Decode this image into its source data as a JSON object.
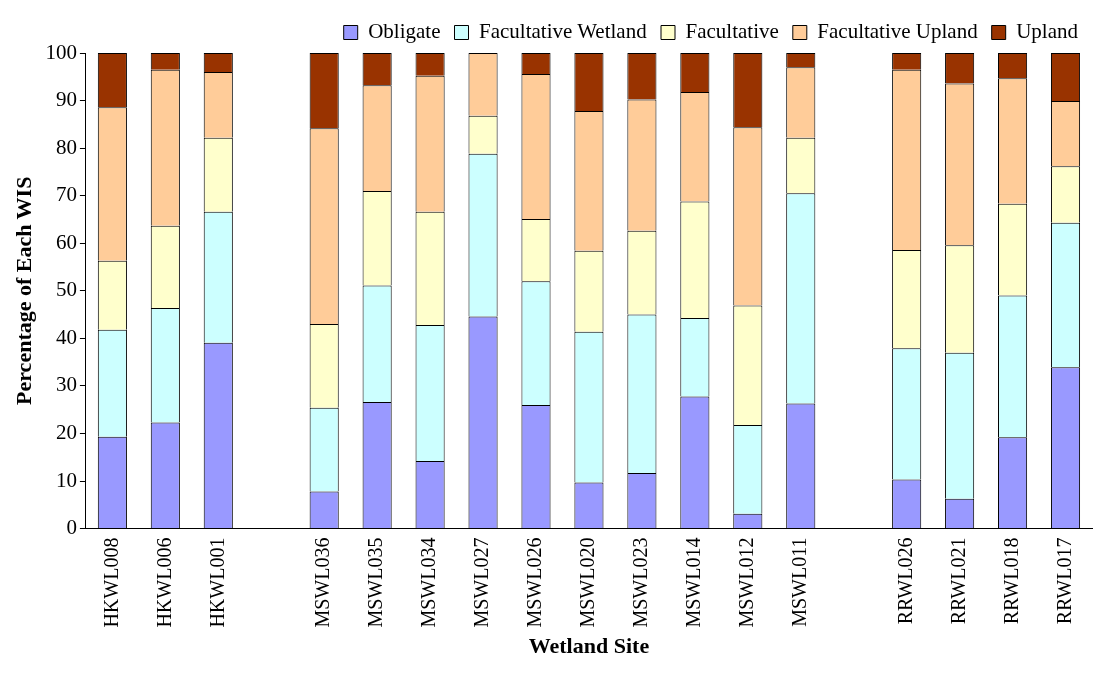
{
  "chart_data": {
    "type": "bar",
    "stacked": true,
    "xlabel": "Wetland Site",
    "ylabel": "Percentage of Each WIS",
    "categories": [
      "HKWL008",
      "HKWL006",
      "HKWL001",
      null,
      "MSWL036",
      "MSWL035",
      "MSWL034",
      "MSWL027",
      "MSWL026",
      "MSWL020",
      "MSWL023",
      "MSWL014",
      "MSWL012",
      "MSWL011",
      null,
      "RRWL026",
      "RRWL021",
      "RRWL018",
      "RRWL017"
    ],
    "series": [
      {
        "name": "Obligate",
        "color": "#9999ff",
        "values": [
          19.3,
          22.3,
          39.1,
          null,
          7.8,
          26.6,
          14.2,
          44.6,
          26.0,
          9.7,
          11.7,
          27.8,
          3.1,
          26.3,
          null,
          10.3,
          6.3,
          19.2,
          33.9
        ]
      },
      {
        "name": "Facultative Wetland",
        "color": "#ccffff",
        "values": [
          22.5,
          24.1,
          27.5,
          null,
          17.6,
          24.5,
          28.6,
          34.2,
          26.0,
          31.7,
          33.3,
          16.5,
          18.7,
          44.2,
          null,
          27.6,
          30.7,
          29.8,
          30.4
        ]
      },
      {
        "name": "Facultative",
        "color": "#ffffcc",
        "values": [
          14.5,
          17.3,
          15.6,
          null,
          17.6,
          19.9,
          23.8,
          8.0,
          13.1,
          17.0,
          17.6,
          24.5,
          25.1,
          11.7,
          null,
          20.7,
          22.6,
          19.3,
          11.9
        ]
      },
      {
        "name": "Facultative Upland",
        "color": "#ffcc99",
        "values": [
          32.3,
          32.8,
          13.8,
          null,
          41.2,
          22.2,
          28.6,
          13.2,
          30.5,
          29.4,
          27.6,
          23.0,
          37.5,
          14.8,
          null,
          37.9,
          34.0,
          26.4,
          13.7
        ]
      },
      {
        "name": "Upland",
        "color": "#993300",
        "values": [
          11.4,
          3.5,
          4.0,
          null,
          15.8,
          6.8,
          4.8,
          0,
          4.4,
          12.2,
          9.8,
          8.2,
          15.6,
          3.0,
          null,
          3.5,
          6.4,
          5.3,
          10.1
        ]
      }
    ],
    "ylim": [
      0,
      100
    ],
    "yticks": [
      0,
      10,
      20,
      30,
      40,
      50,
      60,
      70,
      80,
      90,
      100
    ],
    "grid": false,
    "legend": "top right"
  }
}
